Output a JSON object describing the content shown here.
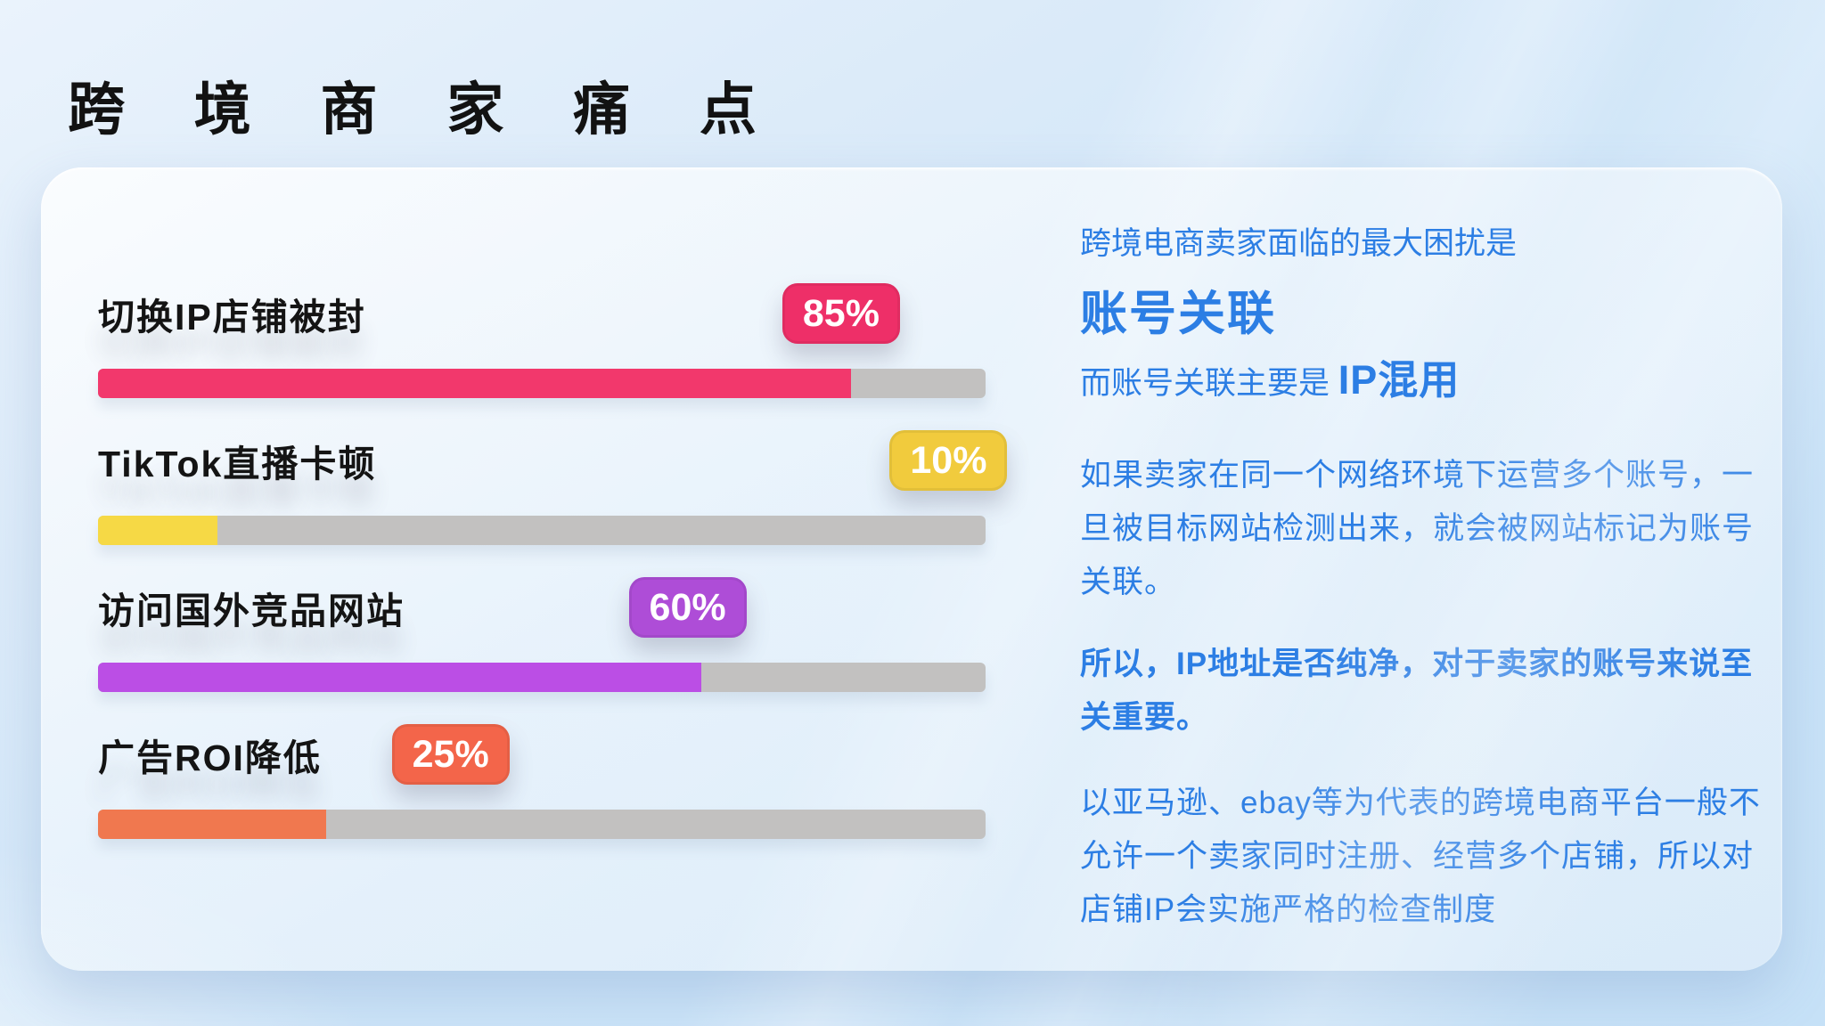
{
  "page": {
    "title": "跨 境 商 家 痛 点"
  },
  "chart_data": {
    "type": "bar",
    "orientation": "horizontal",
    "title": "跨境商家痛点",
    "xlabel": "",
    "ylabel": "",
    "xlim": [
      0,
      100
    ],
    "unit": "%",
    "grid": false,
    "value_labels": "colored badges near end of each fill",
    "track_color": "#C2C1C0",
    "categories": [
      "切换IP店铺被封",
      "TikTok直播卡顿",
      "访问国外竞品网站",
      "广告ROI降低"
    ],
    "values": [
      85,
      10,
      60,
      25
    ],
    "bars": [
      {
        "label": "切换IP店铺被封",
        "value": 85,
        "value_label": "85%",
        "fill_pct": 84.8,
        "fill_color": "#F2386C",
        "badge_color": "#EE2F68",
        "badge_left_pct": 77.1
      },
      {
        "label": "TikTok直播卡顿",
        "value": 10,
        "value_label": "10%",
        "fill_pct": 13.5,
        "fill_color": "#F6D945",
        "badge_color": "#F1CB3D",
        "badge_left_pct": 89.2
      },
      {
        "label": "访问国外竞品网站",
        "value": 60,
        "value_label": "60%",
        "fill_pct": 68.0,
        "fill_color": "#BB4EE5",
        "badge_color": "#AE4DD7",
        "badge_left_pct": 59.8
      },
      {
        "label": "广告ROI降低",
        "value": 25,
        "value_label": "25%",
        "fill_pct": 25.7,
        "fill_color": "#F0784F",
        "badge_color": "#F3654A",
        "badge_left_pct": 33.1
      }
    ]
  },
  "panel": {
    "text_color": "#2C7EE4",
    "intro_line": "跨境电商卖家面临的最大困扰是",
    "headline": "账号关联",
    "sub_prefix": "而账号关联主要是 ",
    "sub_highlight": "IP混用",
    "para_network": "如果卖家在同一个网络环境下运营多个账号，一旦被目标网站检测出来，就会被网站标记为账号关联。",
    "para_ip_purity": "所以，IP地址是否纯净，对于卖家的账号来说至关重要。",
    "para_platforms": "以亚马逊、ebay等为代表的跨境电商平台一般不允许一个卖家同时注册、经营多个店铺，所以对店铺IP会实施严格的检查制度"
  }
}
